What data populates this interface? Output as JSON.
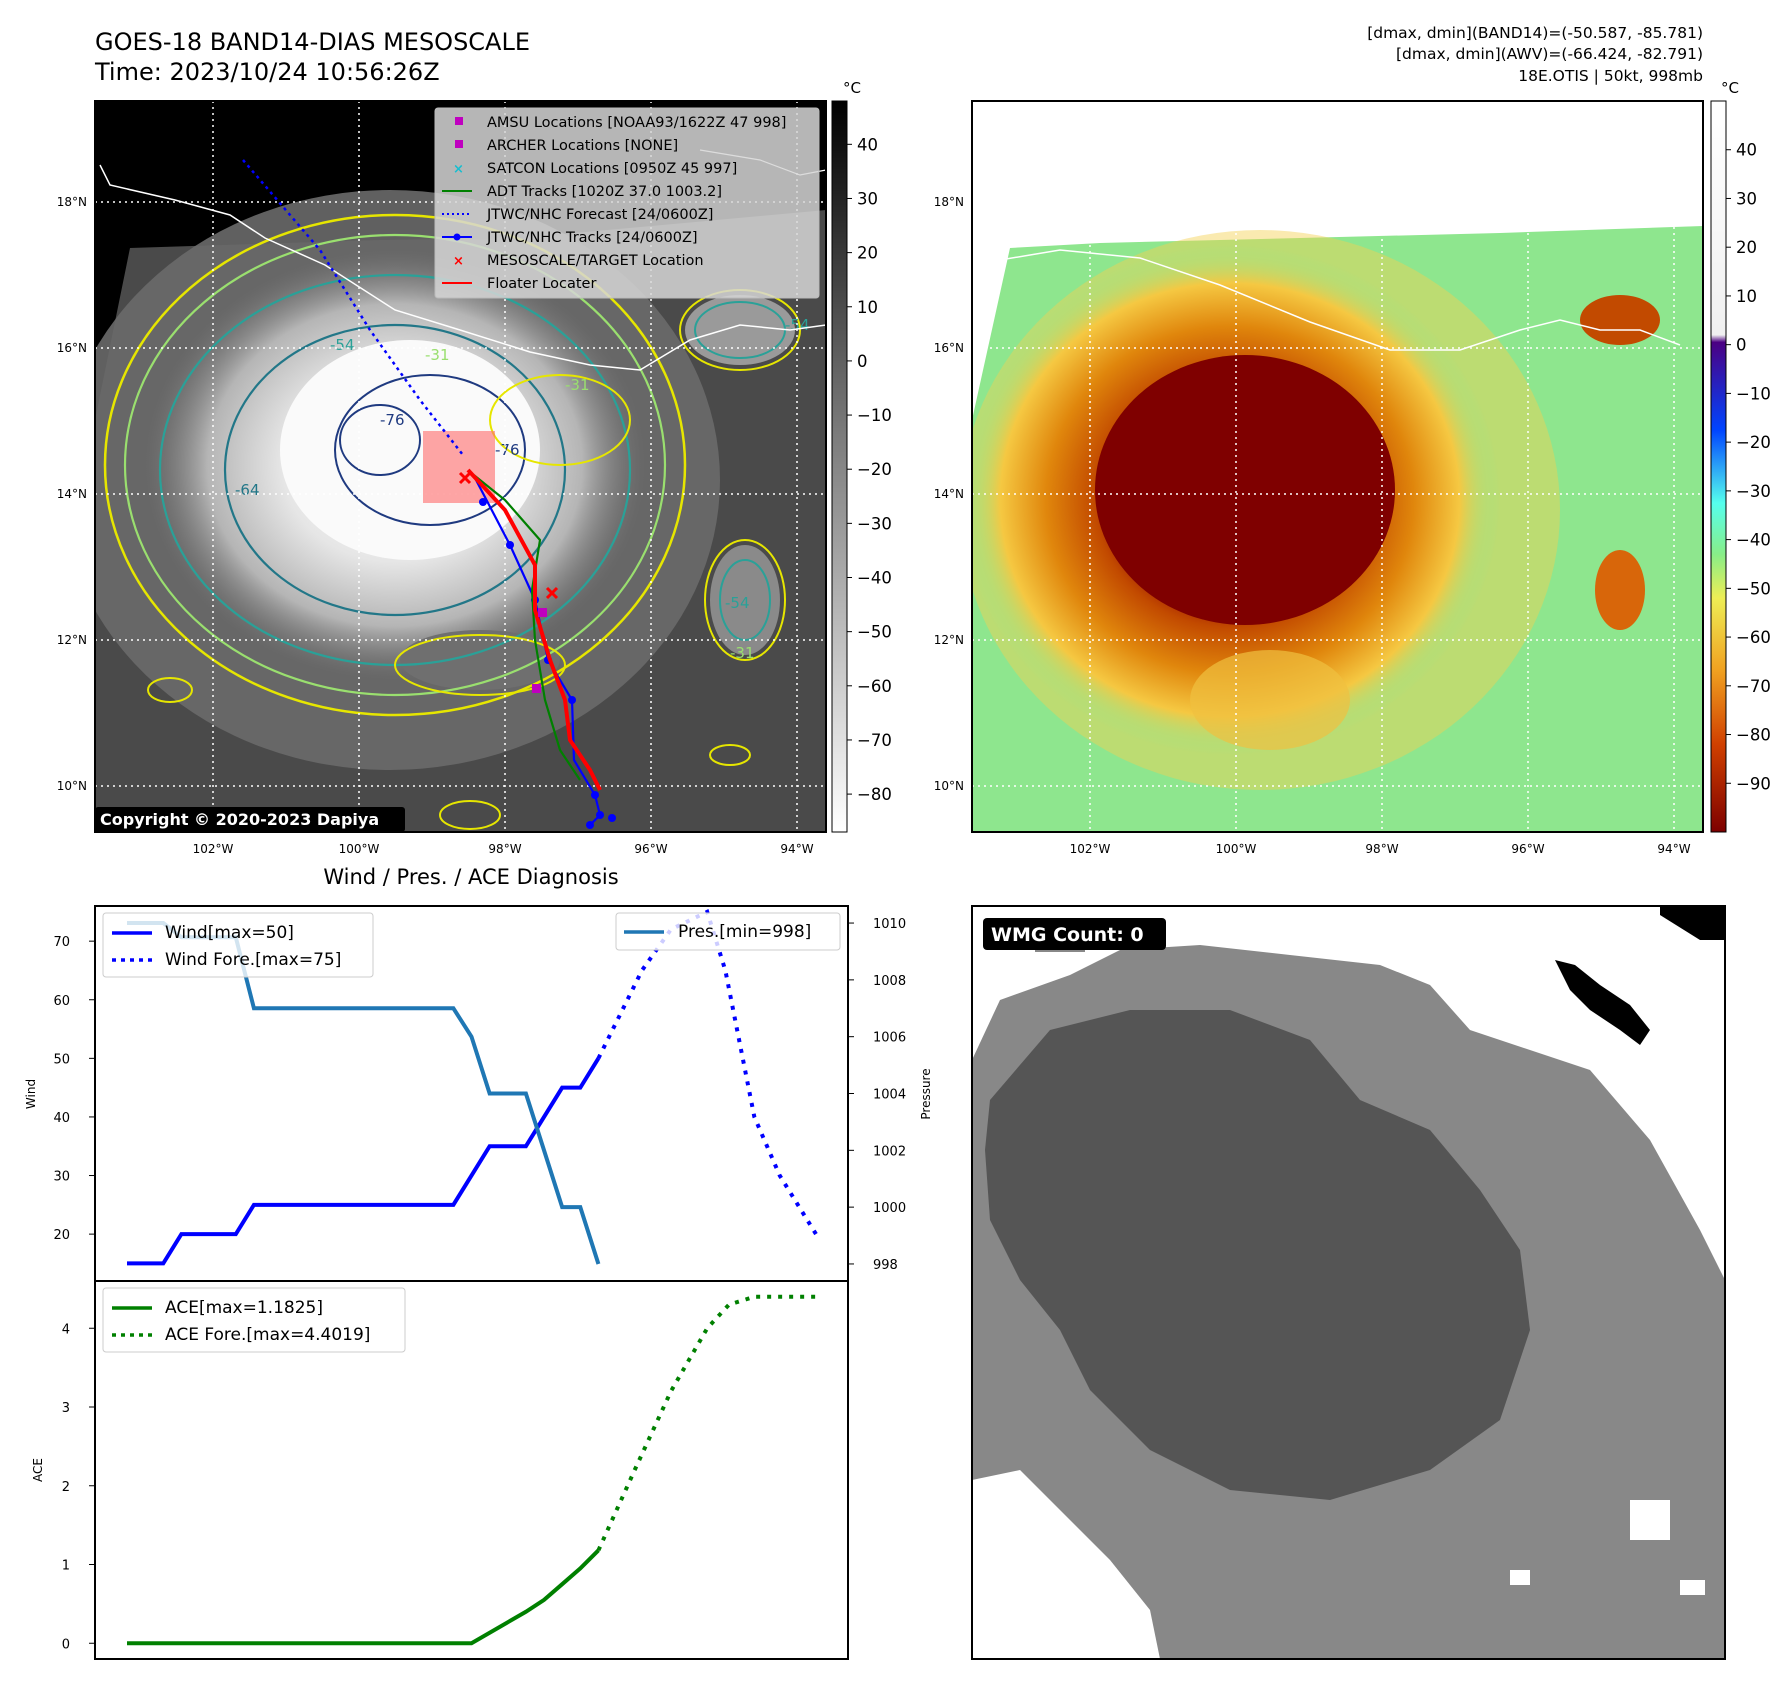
{
  "header": {
    "title_line1": "GOES-18 BAND14-DIAS MESOSCALE",
    "title_line2": "Time: 2023/10/24 10:56:26Z",
    "info_line1": "[dmax, dmin](BAND14)=(-50.587, -85.781)",
    "info_line2": "[dmax, dmin](AWV)=(-66.424, -82.791)",
    "info_line3": "18E.OTIS | 50kt, 998mb"
  },
  "map_axes": {
    "lat_labels": [
      "18°N",
      "16°N",
      "14°N",
      "12°N",
      "10°N"
    ],
    "lon_labels": [
      "102°W",
      "100°W",
      "98°W",
      "96°W",
      "94°W"
    ]
  },
  "ir_panel": {
    "copyright": "Copyright © 2020-2023 Dapiya",
    "colorbar_unit": "°C",
    "colorbar_ticks": [
      "40",
      "30",
      "20",
      "10",
      "0",
      "−10",
      "−20",
      "−30",
      "−40",
      "−50",
      "−60",
      "−70",
      "−80"
    ],
    "contour_labels": [
      "-76",
      "-76",
      "-64",
      "-54",
      "-31",
      "-31",
      "-54",
      "-54",
      "-31"
    ],
    "legend": [
      {
        "label": "AMSU Locations [NOAA93/1622Z 47 998]",
        "marker": "square",
        "color": "#bf00bf"
      },
      {
        "label": "ARCHER Locations [NONE]",
        "marker": "square",
        "color": "#bf00bf"
      },
      {
        "label": "SATCON Locations [0950Z 45 997]",
        "marker": "x",
        "color": "#17becf"
      },
      {
        "label": "ADT Tracks [1020Z 37.0 1003.2]",
        "marker": "line",
        "color": "#008000"
      },
      {
        "label": "JTWC/NHC Forecast [24/0600Z]",
        "marker": "dotted",
        "color": "#0000ff"
      },
      {
        "label": "JTWC/NHC Tracks [24/0600Z]",
        "marker": "line-dot",
        "color": "#0000ff"
      },
      {
        "label": "MESOSCALE/TARGET Location",
        "marker": "x",
        "color": "#ff0000"
      },
      {
        "label": "Floater Locater",
        "marker": "line",
        "color": "#ff0000"
      }
    ]
  },
  "awv_panel": {
    "colorbar_unit": "°C",
    "colorbar_ticks": [
      "40",
      "30",
      "20",
      "10",
      "0",
      "−10",
      "−20",
      "−30",
      "−40",
      "−50",
      "−60",
      "−70",
      "−80",
      "−90"
    ]
  },
  "wmg_panel": {
    "badge": "WMG Count: 0"
  },
  "chart_data": [
    {
      "type": "line",
      "title": "Wind / Pres. / ACE Diagnosis",
      "ylabel": "Wind",
      "ylabel_right": "Pressure",
      "ylim": [
        12,
        76
      ],
      "ylim_right": [
        997.4,
        1010.6
      ],
      "yticks": [
        "70",
        "60",
        "50",
        "40",
        "30",
        "20"
      ],
      "yticks_right": [
        "1010",
        "1008",
        "1006",
        "1004",
        "1002",
        "1000",
        "998"
      ],
      "series": [
        {
          "name": "Wind[max=50]",
          "axis": "left",
          "color": "#0000ff",
          "style": "solid",
          "x": [
            0,
            1,
            1.5,
            3,
            3.5,
            9,
            10,
            11,
            12,
            12.5,
            13
          ],
          "values": [
            15,
            15,
            20,
            20,
            25,
            25,
            35,
            35,
            45,
            45,
            50
          ]
        },
        {
          "name": "Wind Fore.[max=75]",
          "axis": "left",
          "color": "#0000ff",
          "style": "dotted",
          "x": [
            13,
            14.2,
            15,
            16,
            16.5,
            17.3,
            18,
            19
          ],
          "values": [
            50,
            65,
            72,
            75,
            65,
            40,
            30,
            20
          ]
        },
        {
          "name": "Pres.[min=998]",
          "axis": "right",
          "color": "#1f77b4",
          "style": "solid",
          "x": [
            0,
            1,
            1.5,
            3,
            3.5,
            9,
            9.5,
            10,
            11,
            12,
            12.5,
            13
          ],
          "values": [
            1010,
            1010,
            1009.5,
            1009.5,
            1007,
            1007,
            1006,
            1004,
            1004,
            1000,
            1000,
            998
          ]
        }
      ]
    },
    {
      "type": "line",
      "ylabel": "ACE",
      "ylim": [
        -0.2,
        4.6
      ],
      "yticks": [
        "4",
        "3",
        "2",
        "1",
        "0"
      ],
      "series": [
        {
          "name": "ACE[max=1.1825]",
          "color": "#008000",
          "style": "solid",
          "x": [
            0,
            9.5,
            11,
            11.5,
            12,
            12.5,
            13
          ],
          "values": [
            0,
            0,
            0.4,
            0.55,
            0.75,
            0.95,
            1.18
          ]
        },
        {
          "name": "ACE Fore.[max=4.4019]",
          "color": "#008000",
          "style": "dotted",
          "x": [
            13,
            14,
            15,
            16,
            16.6,
            17.3,
            18,
            19
          ],
          "values": [
            1.18,
            2.2,
            3.2,
            4.0,
            4.3,
            4.4,
            4.4,
            4.4
          ]
        }
      ]
    }
  ]
}
